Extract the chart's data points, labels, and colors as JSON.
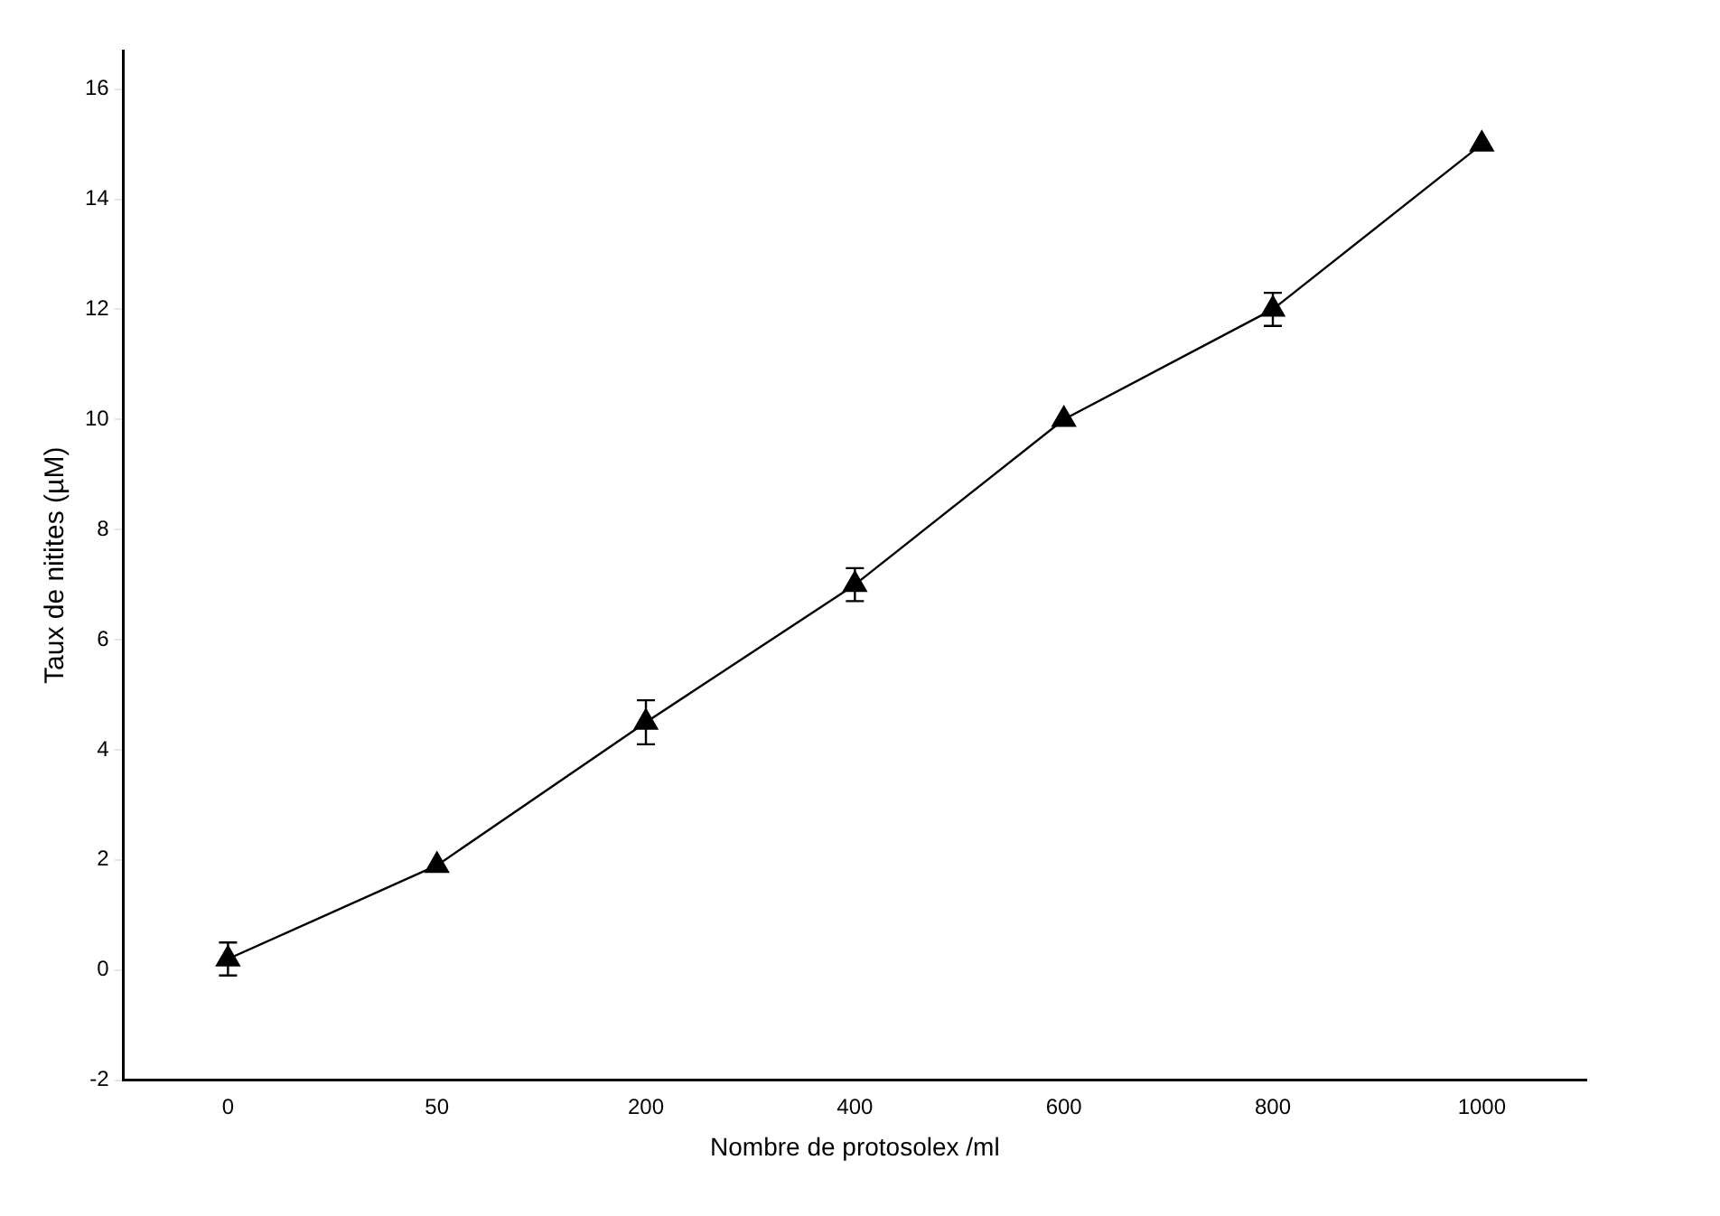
{
  "chart_data": {
    "type": "line",
    "xlabel": "Nombre de protosolex /ml",
    "ylabel": "Taux de nitites (µM)",
    "categories": [
      "0",
      "50",
      "200",
      "400",
      "600",
      "800",
      "1000"
    ],
    "series": [
      {
        "color": "#000000",
        "values": [
          0.2,
          1.9,
          4.5,
          7.0,
          10.0,
          12.0,
          15.0
        ],
        "errors": [
          0.3,
          null,
          0.4,
          0.3,
          null,
          0.3,
          null
        ]
      }
    ],
    "ylim": [
      -2,
      16.7
    ],
    "yticks": [
      -2,
      0,
      2,
      4,
      6,
      8,
      10,
      12,
      14,
      16
    ],
    "grid": false,
    "legend": false,
    "marker": "triangle",
    "line_style": "solid"
  }
}
